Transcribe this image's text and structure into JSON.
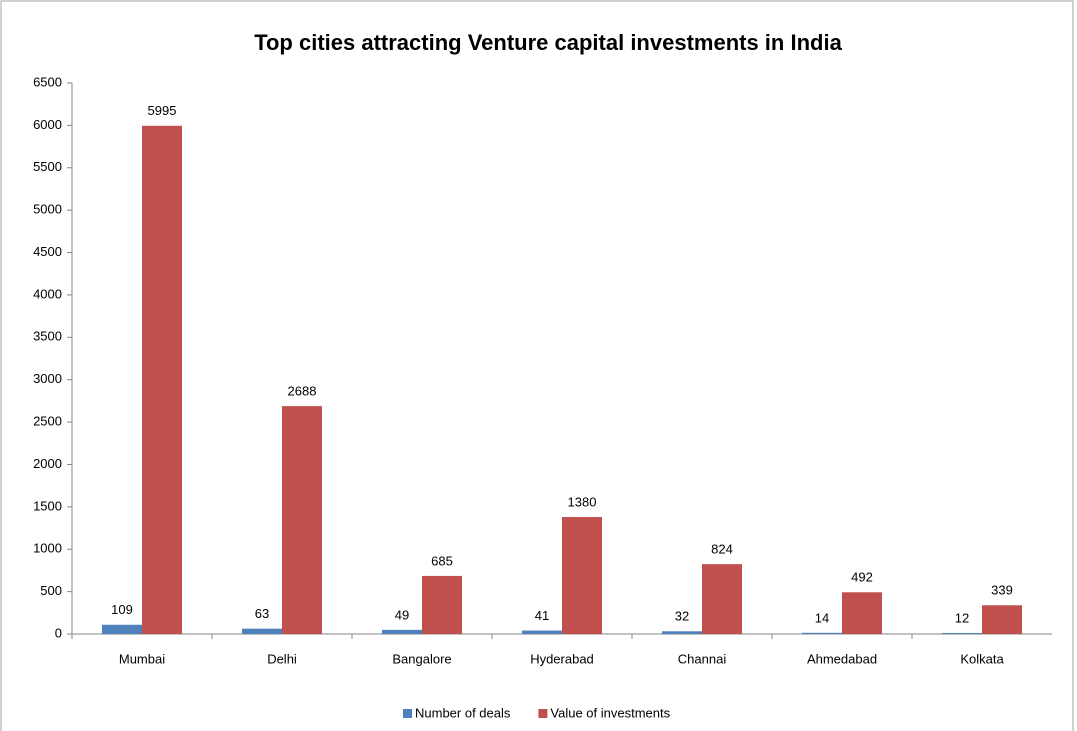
{
  "chart_data": {
    "type": "bar",
    "title": "Top cities attracting Venture capital investments  in India",
    "categories": [
      "Mumbai",
      "Delhi",
      "Bangalore",
      "Hyderabad",
      "Channai",
      "Ahmedabad",
      "Kolkata"
    ],
    "series": [
      {
        "name": "Number of deals",
        "color": "#4f81bd",
        "values": [
          109,
          63,
          49,
          41,
          32,
          14,
          12
        ]
      },
      {
        "name": "Value of investments",
        "color": "#c0504d",
        "values": [
          5995,
          2688,
          685,
          1380,
          824,
          492,
          339
        ]
      }
    ],
    "ylim": [
      0,
      6500
    ],
    "yticks": [
      0,
      500,
      1000,
      1500,
      2000,
      2500,
      3000,
      3500,
      4000,
      4500,
      5000,
      5500,
      6000,
      6500
    ],
    "legend": "bottom"
  }
}
